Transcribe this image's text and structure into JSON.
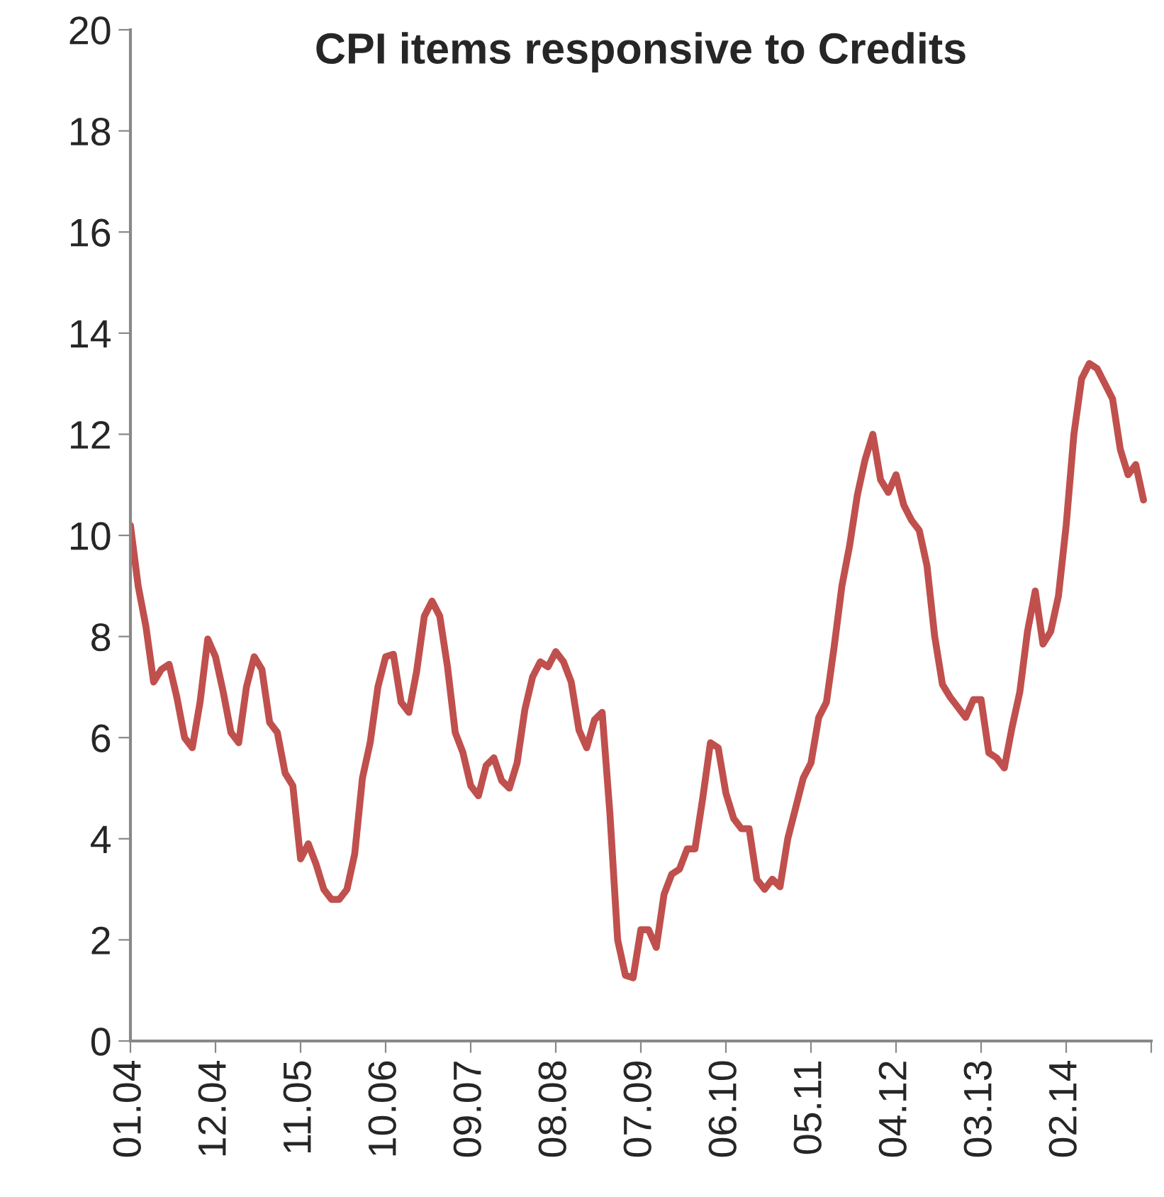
{
  "chart_data": {
    "type": "line",
    "title": "CPI items responsive to Credits",
    "x": [
      "2004-01",
      "2004-02",
      "2004-03",
      "2004-04",
      "2004-05",
      "2004-06",
      "2004-07",
      "2004-08",
      "2004-09",
      "2004-10",
      "2004-11",
      "2004-12",
      "2005-01",
      "2005-02",
      "2005-03",
      "2005-04",
      "2005-05",
      "2005-06",
      "2005-07",
      "2005-08",
      "2005-09",
      "2005-10",
      "2005-11",
      "2005-12",
      "2006-01",
      "2006-02",
      "2006-03",
      "2006-04",
      "2006-05",
      "2006-06",
      "2006-07",
      "2006-08",
      "2006-09",
      "2006-10",
      "2006-11",
      "2006-12",
      "2007-01",
      "2007-02",
      "2007-03",
      "2007-04",
      "2007-05",
      "2007-06",
      "2007-07",
      "2007-08",
      "2007-09",
      "2007-10",
      "2007-11",
      "2007-12",
      "2008-01",
      "2008-02",
      "2008-03",
      "2008-04",
      "2008-05",
      "2008-06",
      "2008-07",
      "2008-08",
      "2008-09",
      "2008-10",
      "2008-11",
      "2008-12",
      "2009-01",
      "2009-02",
      "2009-03",
      "2009-04",
      "2009-05",
      "2009-06",
      "2009-07",
      "2009-08",
      "2009-09",
      "2009-10",
      "2009-11",
      "2009-12",
      "2010-01",
      "2010-02",
      "2010-03",
      "2010-04",
      "2010-05",
      "2010-06",
      "2010-07",
      "2010-08",
      "2010-09",
      "2010-10",
      "2010-11",
      "2010-12",
      "2011-01",
      "2011-02",
      "2011-03",
      "2011-04",
      "2011-05",
      "2011-06",
      "2011-07",
      "2011-08",
      "2011-09",
      "2011-10",
      "2011-11",
      "2011-12",
      "2012-01",
      "2012-02",
      "2012-03",
      "2012-04",
      "2012-05",
      "2012-06",
      "2012-07",
      "2012-08",
      "2012-09",
      "2012-10",
      "2012-11",
      "2012-12",
      "2013-01",
      "2013-02",
      "2013-03",
      "2013-04",
      "2013-05",
      "2013-06",
      "2013-07",
      "2013-08",
      "2013-09",
      "2013-10",
      "2013-11",
      "2013-12",
      "2014-01",
      "2014-02",
      "2014-03",
      "2014-04",
      "2014-05",
      "2014-06",
      "2014-07",
      "2014-08",
      "2014-09",
      "2014-10",
      "2014-11",
      "2014-12"
    ],
    "series": [
      {
        "color": "#c0504d",
        "values": [
          10.2,
          9.0,
          8.2,
          7.1,
          7.35,
          7.45,
          6.8,
          6.0,
          5.8,
          6.7,
          7.95,
          7.6,
          6.9,
          6.1,
          5.9,
          7.0,
          7.6,
          7.35,
          6.3,
          6.1,
          5.3,
          5.05,
          3.6,
          3.9,
          3.5,
          3.0,
          2.8,
          2.8,
          3.0,
          3.7,
          5.2,
          5.9,
          7.0,
          7.6,
          7.65,
          6.7,
          6.5,
          7.3,
          8.4,
          8.7,
          8.4,
          7.4,
          6.1,
          5.7,
          5.05,
          4.85,
          5.45,
          5.6,
          5.15,
          5.0,
          5.5,
          6.55,
          7.2,
          7.5,
          7.4,
          7.7,
          7.5,
          7.1,
          6.15,
          5.8,
          6.35,
          6.5,
          4.5,
          2.0,
          1.3,
          1.25,
          2.2,
          2.2,
          1.85,
          2.9,
          3.3,
          3.4,
          3.8,
          3.8,
          4.8,
          5.9,
          5.8,
          4.9,
          4.4,
          4.2,
          4.2,
          3.2,
          3.0,
          3.2,
          3.05,
          4.0,
          4.6,
          5.2,
          5.5,
          6.4,
          6.7,
          7.8,
          9.0,
          9.8,
          10.8,
          11.5,
          12.0,
          11.1,
          10.85,
          11.2,
          10.6,
          10.3,
          10.1,
          9.4,
          8.0,
          7.05,
          6.8,
          6.6,
          6.4,
          6.75,
          6.75,
          5.7,
          5.6,
          5.4,
          6.2,
          6.9,
          8.1,
          8.9,
          7.85,
          8.1,
          8.8,
          10.2,
          12.0,
          13.1,
          13.4,
          13.3,
          13.0,
          12.7,
          11.7,
          11.2,
          11.4,
          10.7
        ]
      }
    ],
    "xlim": [
      "2004-01",
      "2015-01"
    ],
    "xticks": [
      {
        "value": "2004-01",
        "label": "01.04"
      },
      {
        "value": "2004-12",
        "label": "12.04"
      },
      {
        "value": "2005-11",
        "label": "11.05"
      },
      {
        "value": "2006-10",
        "label": "10.06"
      },
      {
        "value": "2007-09",
        "label": "09.07"
      },
      {
        "value": "2008-08",
        "label": "08.08"
      },
      {
        "value": "2009-07",
        "label": "07.09"
      },
      {
        "value": "2010-06",
        "label": "06.10"
      },
      {
        "value": "2011-05",
        "label": "05.11"
      },
      {
        "value": "2012-04",
        "label": "04.12"
      },
      {
        "value": "2013-03",
        "label": "03.13"
      },
      {
        "value": "2014-02",
        "label": "02.14"
      },
      {
        "value": "2015-01",
        "label": null
      }
    ],
    "ylim": [
      0,
      20
    ],
    "yticks": [
      0,
      2,
      4,
      6,
      8,
      10,
      12,
      14,
      16,
      18,
      20
    ],
    "grid": false,
    "marker": "none",
    "line_style": "solid"
  }
}
